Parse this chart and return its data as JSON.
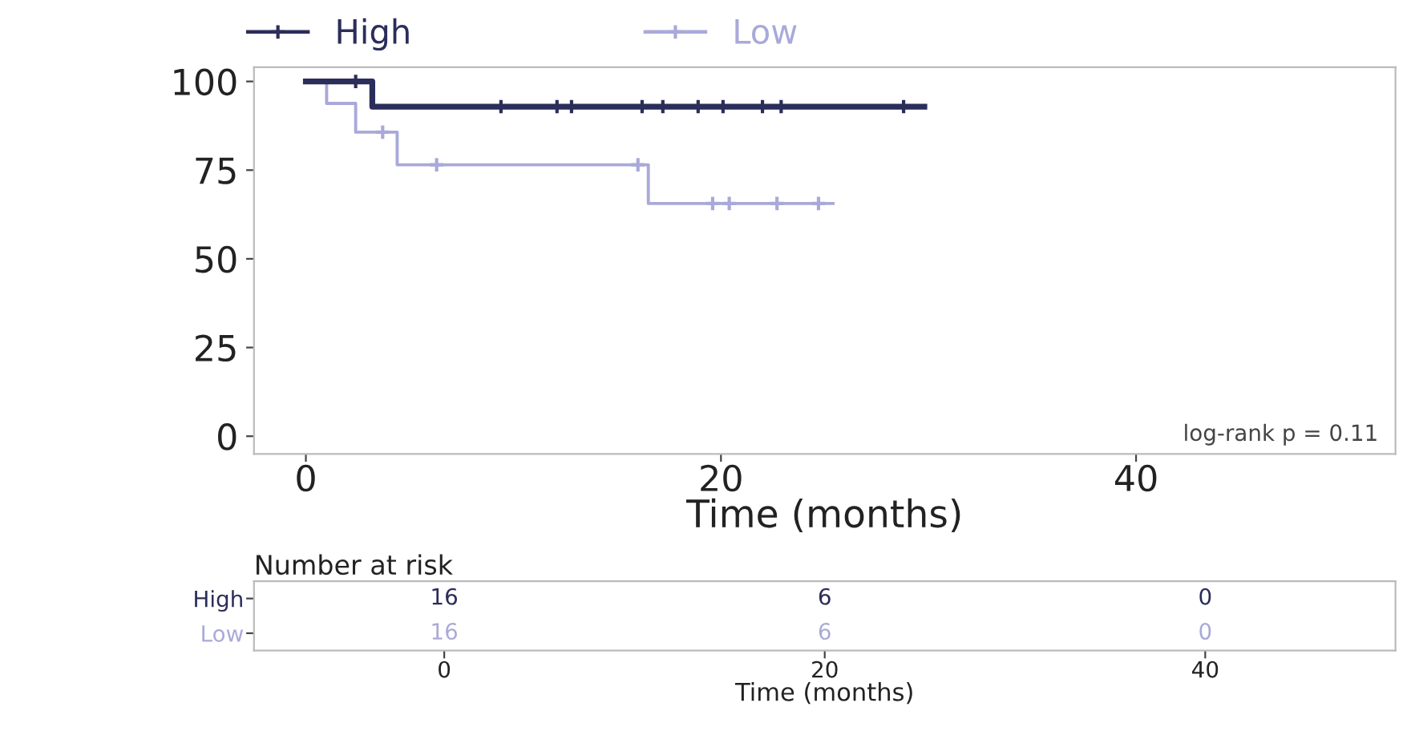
{
  "chart_data": [
    {
      "type": "step",
      "xlabel": "Time (months)",
      "xlim": [
        -2.5,
        52.5
      ],
      "ylim": [
        -5,
        104
      ],
      "xticks": [
        0,
        20,
        40
      ],
      "yticks": [
        0,
        25,
        50,
        75,
        100
      ],
      "grid": false,
      "legend": "top",
      "line_style": "solid",
      "annotations": [
        "log-rank p = 0.11"
      ],
      "series": [
        {
          "name": "High",
          "color": "#2b2d5a",
          "x": [
            0,
            3.2,
            29.8
          ],
          "values": [
            100,
            92.9,
            92.9
          ]
        },
        {
          "name": "Low",
          "color": "#a9a9d9",
          "x": [
            0,
            1.0,
            2.4,
            4.4,
            16.5,
            25.4
          ],
          "values": [
            100,
            93.8,
            85.7,
            76.5,
            65.6,
            65.6
          ]
        },
        {
          "type": "scatter",
          "marker": "cross",
          "color": "#2b2d5a",
          "x": [
            2.4,
            9.4,
            12.1,
            12.8,
            16.2,
            17.2,
            18.9,
            20.1,
            22.0,
            22.9,
            28.8
          ],
          "values": [
            100,
            92.9,
            92.9,
            92.9,
            92.9,
            92.9,
            92.9,
            92.9,
            92.9,
            92.9,
            92.9
          ]
        },
        {
          "type": "scatter",
          "marker": "cross",
          "color": "#a9a9d9",
          "x": [
            3.7,
            6.3,
            16.0,
            19.6,
            20.4,
            22.7,
            24.7
          ],
          "values": [
            85.7,
            76.5,
            76.5,
            65.6,
            65.6,
            65.6,
            65.6
          ]
        }
      ]
    },
    {
      "type": "heatmap",
      "title": "Number at risk",
      "xlabel": "Time (months)",
      "categories": [
        "0",
        "20",
        "40"
      ],
      "y_categories": [
        "High",
        "Low"
      ],
      "cells": [
        [
          16,
          6,
          0
        ],
        [
          16,
          6,
          0
        ]
      ],
      "data_labels": true
    }
  ]
}
